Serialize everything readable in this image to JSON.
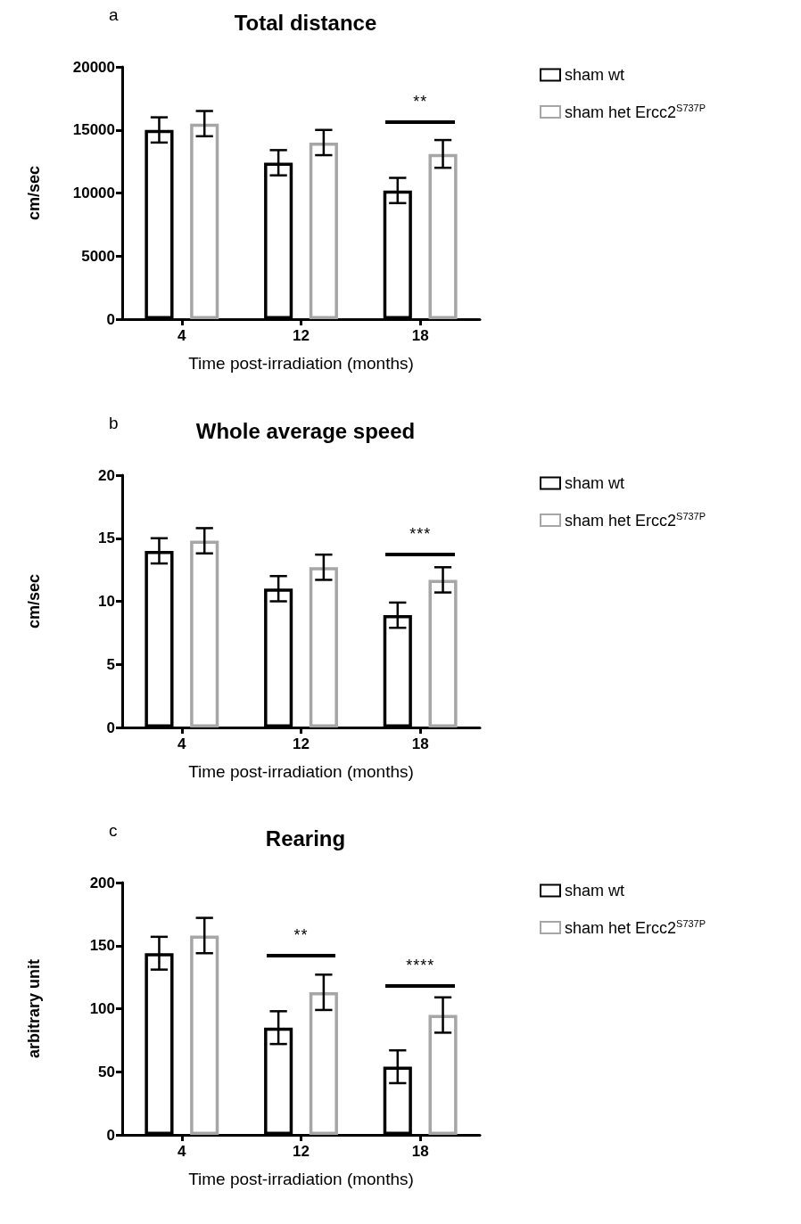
{
  "chart_data": [
    {
      "type": "bar",
      "title": "Total distance",
      "xlabel": "Time post-irradiation (months)",
      "ylabel": "cm/sec",
      "categories": [
        "4",
        "12",
        "18"
      ],
      "series": [
        {
          "name": "sham wt",
          "color": "#000000",
          "values": [
            15000,
            12400,
            10200
          ],
          "errors": [
            1000,
            1000,
            1000
          ]
        },
        {
          "name": "sham het Ercc2$^{S737P}$",
          "color": "#a6a6a6",
          "values": [
            15500,
            14000,
            13100
          ],
          "errors": [
            1000,
            1000,
            1100
          ]
        }
      ],
      "ylim": [
        0,
        20000
      ],
      "yticks": [
        0,
        5000,
        10000,
        15000,
        20000
      ],
      "grid": false,
      "legend": "right",
      "annotations": [
        "a",
        "**"
      ]
    },
    {
      "type": "bar",
      "title": "Whole average speed",
      "xlabel": "Time post-irradiation (months)",
      "ylabel": "cm/sec",
      "categories": [
        "4",
        "12",
        "18"
      ],
      "series": [
        {
          "name": "sham wt",
          "color": "#000000",
          "values": [
            14.0,
            11.0,
            8.9
          ],
          "errors": [
            1.0,
            1.0,
            1.0
          ]
        },
        {
          "name": "sham het Ercc2$^{S737P}$",
          "color": "#a6a6a6",
          "values": [
            14.8,
            12.7,
            11.7
          ],
          "errors": [
            1.0,
            1.0,
            1.0
          ]
        }
      ],
      "ylim": [
        0,
        20
      ],
      "yticks": [
        0,
        5,
        10,
        15,
        20
      ],
      "grid": false,
      "legend": "right",
      "annotations": [
        "b",
        "***"
      ]
    },
    {
      "type": "bar",
      "title": "Rearing",
      "xlabel": "Time post-irradiation (months)",
      "ylabel": "arbitrary unit",
      "categories": [
        "4",
        "12",
        "18"
      ],
      "series": [
        {
          "name": "sham wt",
          "color": "#000000",
          "values": [
            144,
            85,
            54
          ],
          "errors": [
            13,
            13,
            13
          ]
        },
        {
          "name": "sham het Ercc2$^{S737P}$",
          "color": "#a6a6a6",
          "values": [
            158,
            113,
            95
          ],
          "errors": [
            14,
            14,
            14
          ]
        }
      ],
      "ylim": [
        0,
        200
      ],
      "yticks": [
        0,
        50,
        100,
        150,
        200
      ],
      "grid": false,
      "legend": "right",
      "annotations": [
        "c",
        "**",
        "****"
      ]
    }
  ]
}
